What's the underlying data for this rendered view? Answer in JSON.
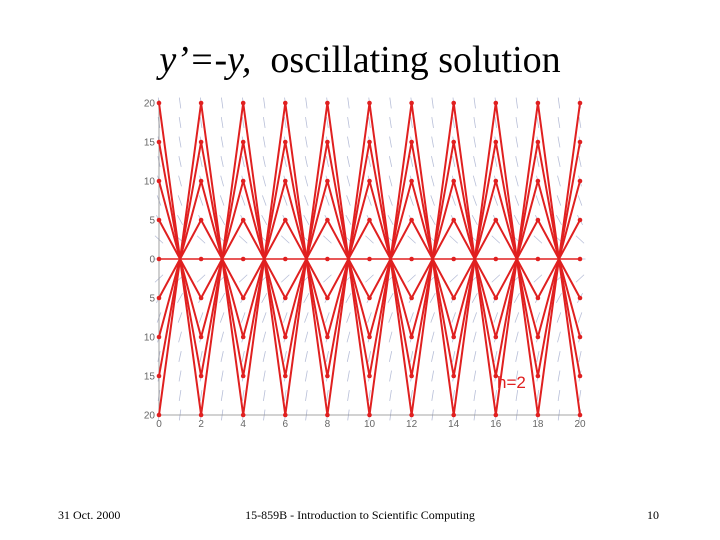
{
  "slide": {
    "title_equation": "y’=-y,",
    "title_text": "oscillating solution",
    "footer_date": "31 Oct. 2000",
    "footer_course": "15-859B - Introduction to Scientific Computing",
    "footer_page": "10"
  },
  "chart_data": {
    "type": "line",
    "annotation": "h=2",
    "x_ticks": [
      "0",
      "2",
      "4",
      "6",
      "8",
      "10",
      "12",
      "14",
      "16",
      "18",
      "20"
    ],
    "y_ticks": [
      "20",
      "15",
      "10",
      "5",
      "0",
      "5",
      "10",
      "15",
      "20"
    ],
    "xlim": [
      0,
      20
    ],
    "ylim": [
      -20,
      20
    ],
    "step": 2,
    "initial_values": [
      20,
      15,
      10,
      5,
      -5,
      -10,
      -15,
      -20
    ],
    "grid": false,
    "colors": {
      "series": "#e02020",
      "field": "#b8bfd8",
      "axis": "#888888"
    }
  }
}
